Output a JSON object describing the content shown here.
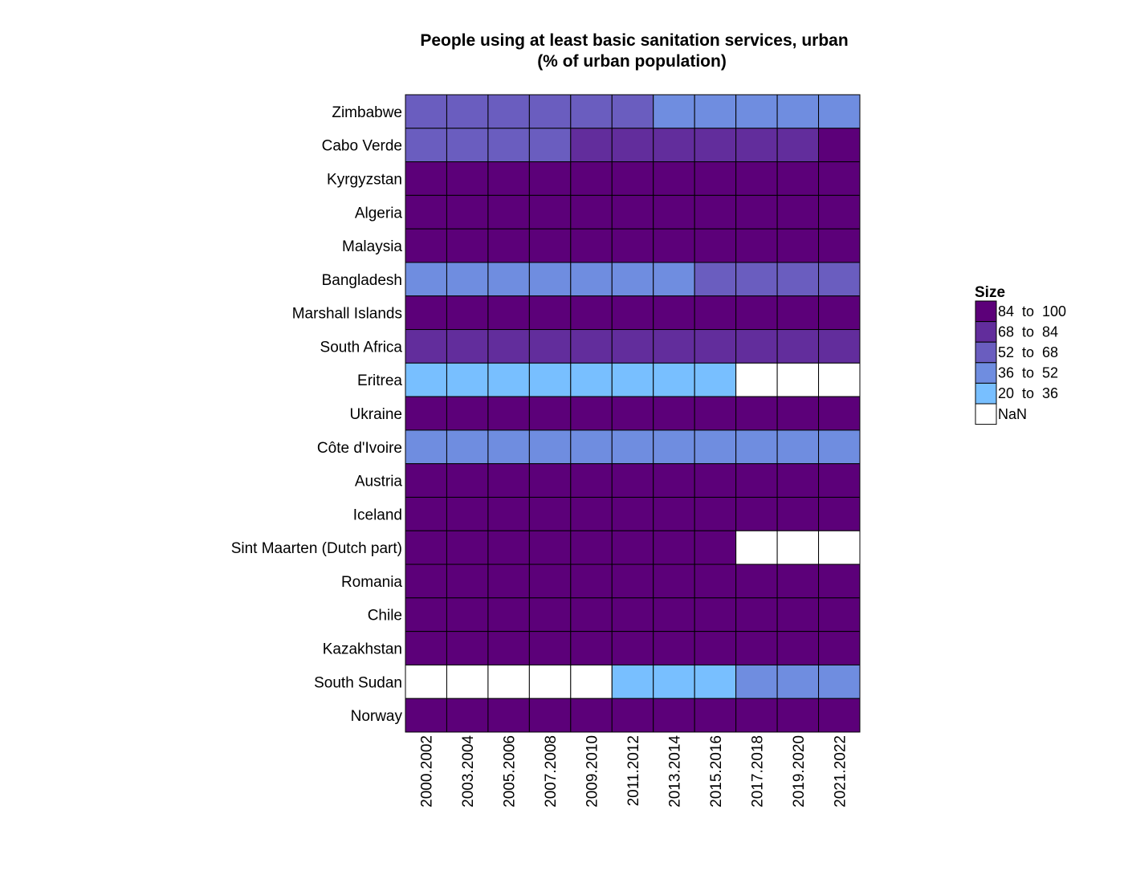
{
  "chart_data": {
    "type": "heatmap",
    "title": [
      "People using at least basic sanitation services, urban",
      "(% of urban population)"
    ],
    "columns": [
      "2000.2002",
      "2003.2004",
      "2005.2006",
      "2007.2008",
      "2009.2010",
      "2011.2012",
      "2013.2014",
      "2015.2016",
      "2017.2018",
      "2019.2020",
      "2021.2022"
    ],
    "rows": [
      "Zimbabwe",
      "Cabo Verde",
      "Kyrgyzstan",
      "Algeria",
      "Malaysia",
      "Bangladesh",
      "Marshall Islands",
      "South Africa",
      "Eritrea",
      "Ukraine",
      "Côte d'Ivoire",
      "Austria",
      "Iceland",
      "Sint Maarten (Dutch part)",
      "Romania",
      "Chile",
      "Kazakhstan",
      "South Sudan",
      "Norway"
    ],
    "values": [
      [
        60,
        60,
        60,
        60,
        60,
        60,
        48,
        48,
        48,
        48,
        48
      ],
      [
        62,
        64,
        66,
        67,
        70,
        72,
        74,
        76,
        78,
        80,
        85
      ],
      [
        95,
        95,
        95,
        95,
        95,
        95,
        95,
        95,
        95,
        95,
        95
      ],
      [
        94,
        94,
        94,
        94,
        94,
        94,
        94,
        94,
        94,
        94,
        94
      ],
      [
        98,
        98,
        98,
        98,
        98,
        98,
        98,
        98,
        98,
        98,
        98
      ],
      [
        45,
        46,
        47,
        48,
        49,
        50,
        51,
        53,
        55,
        57,
        59
      ],
      [
        88,
        88,
        88,
        88,
        88,
        88,
        88,
        88,
        88,
        88,
        88
      ],
      [
        75,
        75,
        75,
        76,
        76,
        77,
        77,
        78,
        78,
        79,
        79
      ],
      [
        30,
        30,
        30,
        30,
        30,
        30,
        30,
        30,
        null,
        null,
        null
      ],
      [
        96,
        96,
        96,
        96,
        96,
        96,
        96,
        96,
        96,
        96,
        96
      ],
      [
        40,
        41,
        42,
        43,
        44,
        45,
        46,
        47,
        48,
        49,
        50
      ],
      [
        100,
        100,
        100,
        100,
        100,
        100,
        100,
        100,
        100,
        100,
        100
      ],
      [
        99,
        99,
        99,
        99,
        99,
        99,
        99,
        99,
        99,
        99,
        99
      ],
      [
        92,
        92,
        92,
        92,
        92,
        92,
        92,
        92,
        null,
        null,
        null
      ],
      [
        90,
        90,
        90,
        90,
        90,
        90,
        90,
        90,
        90,
        90,
        90
      ],
      [
        100,
        100,
        100,
        100,
        100,
        100,
        100,
        100,
        100,
        100,
        100
      ],
      [
        97,
        97,
        97,
        97,
        97,
        97,
        97,
        97,
        97,
        97,
        97
      ],
      [
        null,
        null,
        null,
        null,
        null,
        30,
        32,
        34,
        38,
        40,
        42
      ],
      [
        100,
        100,
        100,
        100,
        100,
        100,
        100,
        100,
        100,
        100,
        100
      ]
    ],
    "legend": {
      "title": "Size",
      "placement": "right",
      "bins": [
        {
          "label": "84  to  100",
          "min": 84,
          "max": 100,
          "color": "#5c0079"
        },
        {
          "label": "68  to  84",
          "min": 68,
          "max": 84,
          "color": "#622d9c"
        },
        {
          "label": "52  to  68",
          "min": 52,
          "max": 68,
          "color": "#6a5dbf"
        },
        {
          "label": "36  to  52",
          "min": 36,
          "max": 52,
          "color": "#6f8de0"
        },
        {
          "label": "20  to  36",
          "min": 20,
          "max": 36,
          "color": "#78bfff"
        }
      ],
      "nan": {
        "label": "NaN",
        "color": "#ffffff"
      }
    },
    "grid": true
  }
}
